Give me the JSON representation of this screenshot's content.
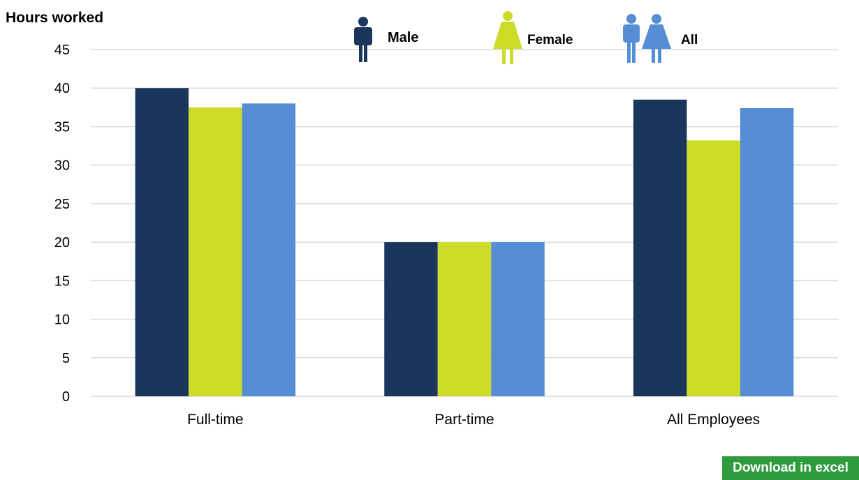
{
  "chart_data": {
    "type": "bar",
    "ylabel": "Hours worked",
    "xlabel": "",
    "ylim": [
      0,
      45
    ],
    "yticks": [
      0,
      5,
      10,
      15,
      20,
      25,
      30,
      35,
      40,
      45
    ],
    "grid": true,
    "legend_position": "top",
    "categories": [
      "Full-time",
      "Part-time",
      "All Employees"
    ],
    "series": [
      {
        "name": "Male",
        "color": "#1a365d",
        "icon": "male-person-icon",
        "values": [
          40,
          20,
          38.5
        ]
      },
      {
        "name": "Female",
        "color": "#cddc28",
        "icon": "female-person-icon",
        "values": [
          37.5,
          20,
          33.2
        ]
      },
      {
        "name": "All",
        "color": "#558ed5",
        "icon": "male-female-pair-icon",
        "values": [
          38,
          20,
          37.4
        ]
      }
    ]
  },
  "actions": {
    "download_label": "Download in excel"
  }
}
